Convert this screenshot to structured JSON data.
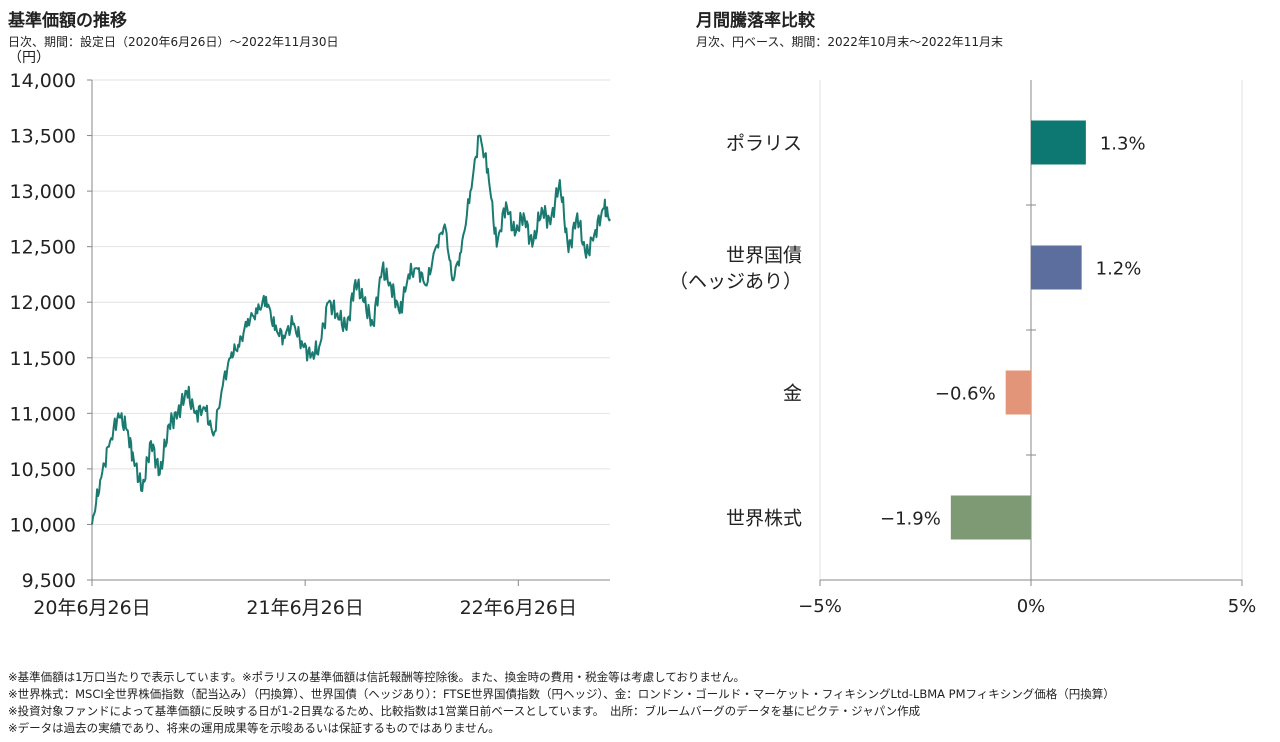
{
  "left_chart": {
    "title": "基準価額の推移",
    "subtitle": "日次、期間：設定日（2020年6月26日）〜2022年11月30日",
    "unit": "（円）"
  },
  "right_chart": {
    "title": "月間騰落率比較",
    "subtitle": "月次、円ベース、期間：2022年10月末〜2022年11月末"
  },
  "notes": [
    "※基準価額は1万口当たりで表示しています。※ポラリスの基準価額は信託報酬等控除後。また、換金時の費用・税金等は考慮しておりません。",
    "※世界株式：MSCI全世界株価指数（配当込み）（円換算）、世界国債（ヘッジあり）：FTSE世界国債指数（円ヘッジ）、金：ロンドン・ゴールド・マーケット・フィキシングLtd-LBMA PMフィキシング価格（円換算）",
    "※投資対象ファンドによって基準価額に反映する日が1-2日異なるため、比較指数は1営業日前ベースとしています。　出所：ブルームバーグのデータを基にピクテ・ジャパン作成",
    "※データは過去の実績であり、将来の運用成果等を示唆あるいは保証するものではありません。"
  ],
  "chart_data": [
    {
      "type": "line",
      "title": "基準価額の推移",
      "ylabel": "（円）",
      "ylim": [
        9500,
        14000
      ],
      "yticks": [
        9500,
        10000,
        10500,
        11000,
        11500,
        12000,
        12500,
        13000,
        13500,
        14000
      ],
      "ytick_labels": [
        "9,500",
        "10,000",
        "10,500",
        "11,000",
        "11,500",
        "12,000",
        "12,500",
        "13,000",
        "13,500",
        "14,000"
      ],
      "xtick_labels": [
        "20年6月26日",
        "21年6月26日",
        "22年6月26日"
      ],
      "xlim": [
        "2020-06-26",
        "2022-11-30"
      ],
      "grid": true,
      "color": "#1a7a70",
      "series": [
        {
          "x": [
            "2020-06-26",
            "2020-07-10",
            "2020-07-25",
            "2020-08-10",
            "2020-08-25",
            "2020-09-05",
            "2020-09-20",
            "2020-10-05",
            "2020-10-20",
            "2020-11-05",
            "2020-11-20",
            "2020-12-05",
            "2020-12-20",
            "2021-01-05",
            "2021-01-20",
            "2021-02-05",
            "2021-02-20",
            "2021-03-05",
            "2021-03-20",
            "2021-04-05",
            "2021-04-20",
            "2021-05-05",
            "2021-05-20",
            "2021-06-05",
            "2021-06-20",
            "2021-07-05",
            "2021-07-20",
            "2021-08-05",
            "2021-08-20",
            "2021-09-05",
            "2021-09-20",
            "2021-10-05",
            "2021-10-20",
            "2021-11-05",
            "2021-11-20",
            "2021-12-05",
            "2021-12-20",
            "2022-01-05",
            "2022-01-20",
            "2022-02-05",
            "2022-02-20",
            "2022-03-05",
            "2022-03-20",
            "2022-04-05",
            "2022-04-20",
            "2022-05-05",
            "2022-05-20",
            "2022-06-05",
            "2022-06-20",
            "2022-07-05",
            "2022-07-20",
            "2022-08-05",
            "2022-08-20",
            "2022-09-05",
            "2022-09-20",
            "2022-10-05",
            "2022-10-20",
            "2022-11-05",
            "2022-11-20",
            "2022-11-30"
          ],
          "y": [
            10000,
            10400,
            10700,
            11000,
            10850,
            10600,
            10300,
            10750,
            10450,
            10900,
            11000,
            11200,
            11000,
            11050,
            10800,
            11250,
            11550,
            11600,
            11850,
            11900,
            12050,
            11750,
            11700,
            11800,
            11650,
            11500,
            11600,
            12000,
            11900,
            11750,
            12200,
            12000,
            11800,
            12300,
            12150,
            11900,
            12250,
            12300,
            12150,
            12500,
            12700,
            12200,
            12450,
            13000,
            13500,
            13200,
            12500,
            12900,
            12600,
            12800,
            12500,
            12850,
            12700,
            13100,
            12450,
            12800,
            12400,
            12650,
            12850,
            12750
          ]
        }
      ]
    },
    {
      "type": "bar",
      "orientation": "horizontal",
      "title": "月間騰落率比較",
      "categories": [
        "ポラリス",
        "世界国債（ヘッジあり）",
        "金",
        "世界株式"
      ],
      "category_lines": [
        [
          "ポラリス"
        ],
        [
          "世界国債",
          "（ヘッジあり）"
        ],
        [
          "金"
        ],
        [
          "世界株式"
        ]
      ],
      "values": [
        1.3,
        1.2,
        -0.6,
        -1.9
      ],
      "value_labels": [
        "1.3%",
        "1.2%",
        "−0.6%",
        "−1.9%"
      ],
      "colors": [
        "#0d7872",
        "#5b6e9e",
        "#e3957a",
        "#7e9a74"
      ],
      "xlim": [
        -5,
        5
      ],
      "xticks": [
        -5,
        0,
        5
      ],
      "xtick_labels": [
        "−5%",
        "0%",
        "5%"
      ]
    }
  ]
}
